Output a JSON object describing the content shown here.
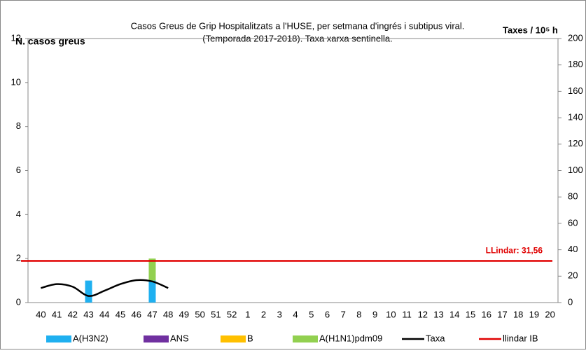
{
  "chart_data": {
    "type": "bar",
    "title": "Casos  Greus de Grip Hospitalitzats a l'HUSE, per setmana  d'ingrés i subtipus viral.",
    "subtitle": "(Temporada 2017-2018). Taxa xarxa sentinella.",
    "y_label": "N. casos  greus",
    "y2_label": "Taxes / 10⁵ h",
    "annotation": "LLindar: 31,56",
    "categories": [
      "40",
      "41",
      "42",
      "43",
      "44",
      "45",
      "46",
      "47",
      "48",
      "49",
      "50",
      "51",
      "52",
      "1",
      "2",
      "3",
      "4",
      "5",
      "6",
      "7",
      "8",
      "9",
      "10",
      "11",
      "12",
      "13",
      "14",
      "15",
      "16",
      "17",
      "18",
      "19",
      "20"
    ],
    "ylim": [
      0,
      12
    ],
    "yticks": [
      0,
      2,
      4,
      6,
      8,
      10,
      12
    ],
    "y2lim": [
      0,
      200
    ],
    "y2ticks": [
      0,
      20,
      40,
      60,
      80,
      100,
      120,
      140,
      160,
      180,
      200
    ],
    "series": [
      {
        "name": "A(H3N2)",
        "color": "#1fb0f0",
        "type": "bar",
        "values": [
          0,
          0,
          0,
          1,
          0,
          0,
          0,
          1,
          0,
          0,
          0,
          0,
          0,
          0,
          0,
          0,
          0,
          0,
          0,
          0,
          0,
          0,
          0,
          0,
          0,
          0,
          0,
          0,
          0,
          0,
          0,
          0,
          0
        ]
      },
      {
        "name": "ANS",
        "color": "#7030a0",
        "type": "bar",
        "values": [
          0,
          0,
          0,
          0,
          0,
          0,
          0,
          0,
          0,
          0,
          0,
          0,
          0,
          0,
          0,
          0,
          0,
          0,
          0,
          0,
          0,
          0,
          0,
          0,
          0,
          0,
          0,
          0,
          0,
          0,
          0,
          0,
          0
        ]
      },
      {
        "name": "B",
        "color": "#ffc000",
        "type": "bar",
        "values": [
          0,
          0,
          0,
          0,
          0,
          0,
          0,
          0,
          0,
          0,
          0,
          0,
          0,
          0,
          0,
          0,
          0,
          0,
          0,
          0,
          0,
          0,
          0,
          0,
          0,
          0,
          0,
          0,
          0,
          0,
          0,
          0,
          0
        ]
      },
      {
        "name": "A(H1N1)pdm09",
        "color": "#92d050",
        "type": "bar",
        "values": [
          0,
          0,
          0,
          0,
          0,
          0,
          0,
          1,
          0,
          0,
          0,
          0,
          0,
          0,
          0,
          0,
          0,
          0,
          0,
          0,
          0,
          0,
          0,
          0,
          0,
          0,
          0,
          0,
          0,
          0,
          0,
          0,
          0
        ]
      },
      {
        "name": "Taxa",
        "color": "#000000",
        "type": "line",
        "axis": "y2",
        "values": [
          11,
          14,
          12,
          5,
          9,
          14,
          17,
          16,
          11,
          null,
          null,
          null,
          null,
          null,
          null,
          null,
          null,
          null,
          null,
          null,
          null,
          null,
          null,
          null,
          null,
          null,
          null,
          null,
          null,
          null,
          null,
          null,
          null
        ]
      },
      {
        "name": "llindar IB",
        "color": "#e00000",
        "type": "line",
        "axis": "y2",
        "values": [
          31.56,
          31.56,
          31.56,
          31.56,
          31.56,
          31.56,
          31.56,
          31.56,
          31.56,
          31.56,
          31.56,
          31.56,
          31.56,
          31.56,
          31.56,
          31.56,
          31.56,
          31.56,
          31.56,
          31.56,
          31.56,
          31.56,
          31.56,
          31.56,
          31.56,
          31.56,
          31.56,
          31.56,
          31.56,
          31.56,
          31.56,
          31.56,
          31.56
        ]
      }
    ]
  }
}
